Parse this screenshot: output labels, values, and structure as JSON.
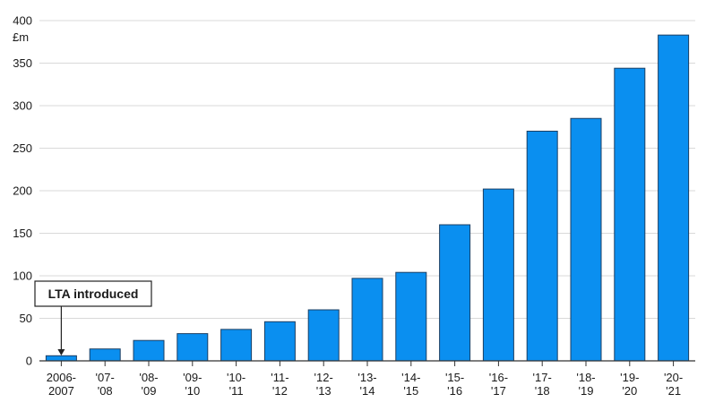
{
  "chart_data": {
    "type": "bar",
    "unit_label": "£m",
    "categories": [
      [
        "2006-",
        "2007"
      ],
      [
        "'07-",
        "'08"
      ],
      [
        "'08-",
        "'09"
      ],
      [
        "'09-",
        "'10"
      ],
      [
        "'10-",
        "'11"
      ],
      [
        "'11-",
        "'12"
      ],
      [
        "'12-",
        "'13"
      ],
      [
        "'13-",
        "'14"
      ],
      [
        "'14-",
        "'15"
      ],
      [
        "'15-",
        "'16"
      ],
      [
        "'16-",
        "'17"
      ],
      [
        "'17-",
        "'18"
      ],
      [
        "'18-",
        "'19"
      ],
      [
        "'19-",
        "'20"
      ],
      [
        "'20-",
        "'21"
      ]
    ],
    "values": [
      6,
      14,
      24,
      32,
      37,
      46,
      60,
      97,
      104,
      160,
      202,
      270,
      285,
      344,
      383
    ],
    "ylim": [
      0,
      400
    ],
    "yticks": [
      0,
      50,
      100,
      150,
      200,
      250,
      300,
      350,
      400
    ],
    "bar_color": "#0a8ff0",
    "bar_edge_color": "#1c3f63",
    "grid": true,
    "annotation": {
      "text": "LTA introduced",
      "category_index": 0
    }
  }
}
